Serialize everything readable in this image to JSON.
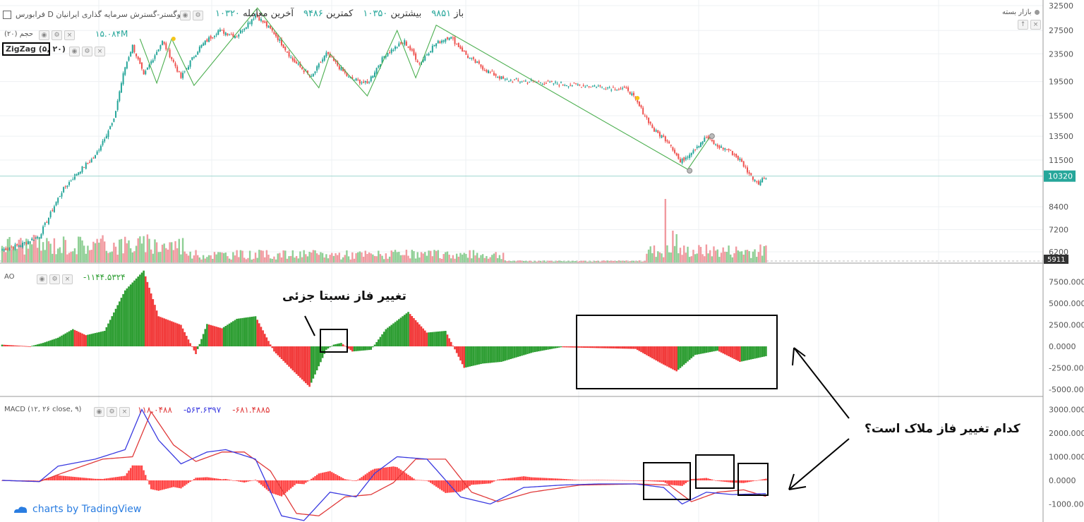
{
  "header": {
    "symbol": "فرابورس D وگستر-گسترش سرمایه گذاری ایرانیان",
    "stats": [
      {
        "label": "باز",
        "value": "۹۸۵۱"
      },
      {
        "label": "بیشترین",
        "value": "۱۰۳۵۰"
      },
      {
        "label": "کمترین",
        "value": "۹۴۸۶"
      },
      {
        "label": "آخرین معامله",
        "value": "۱۰۳۲۰"
      }
    ],
    "market_status": "بازار بسته",
    "volume_label": "حجم (۲۰)",
    "volume_value": "۱۵.۰۸۴M",
    "zigzag_label": "ZigZag (۵, ۲۰)"
  },
  "ao_panel": {
    "label": "AO",
    "value": "-۱۱۴۴.۵۳۲۴"
  },
  "macd_panel": {
    "label": "MACD (۱۲, ۲۶ close, ۹)",
    "hist": "۱۱۸.۰۴۸۸",
    "macd": "-۵۶۳.۶۳۹۷",
    "signal": "-۶۸۱.۴۸۸۵"
  },
  "annotations": {
    "partial_phase": "تغییر فاز نسبتا جزئی",
    "question": "کدام تغییر فاز ملاک است؟"
  },
  "branding": "charts by TradingView",
  "colors": {
    "up": "#26a69a",
    "down": "#ef5350",
    "zigzag": "#4caf50",
    "ao_up": "#2e9e33",
    "ao_down": "#f23b3b",
    "macd": "#3a3ae0",
    "signal": "#e03a3a"
  },
  "chart_data": [
    {
      "type": "candlestick",
      "title": "فرابورس D وگستر-گسترش سرمایه گذاری ایرانیان",
      "price_axis": {
        "ticks": [
          32500,
          27500,
          23500,
          19500,
          15500,
          13500,
          11500,
          8400,
          7200,
          6200
        ],
        "scale": "log",
        "last_price": 10320,
        "marker": 5911
      },
      "close_path": [
        {
          "i": 0,
          "p": 6300
        },
        {
          "i": 10,
          "p": 6500
        },
        {
          "i": 20,
          "p": 6900
        },
        {
          "i": 25,
          "p": 7800
        },
        {
          "i": 32,
          "p": 9300
        },
        {
          "i": 40,
          "p": 10500
        },
        {
          "i": 50,
          "p": 11800
        },
        {
          "i": 60,
          "p": 15000
        },
        {
          "i": 66,
          "p": 21500
        },
        {
          "i": 70,
          "p": 24800
        },
        {
          "i": 76,
          "p": 20200
        },
        {
          "i": 86,
          "p": 25500
        },
        {
          "i": 96,
          "p": 20000
        },
        {
          "i": 106,
          "p": 24500
        },
        {
          "i": 116,
          "p": 27500
        },
        {
          "i": 126,
          "p": 26500
        },
        {
          "i": 136,
          "p": 30500
        },
        {
          "i": 146,
          "p": 27000
        },
        {
          "i": 156,
          "p": 22500
        },
        {
          "i": 166,
          "p": 20000
        },
        {
          "i": 174,
          "p": 23500
        },
        {
          "i": 186,
          "p": 20000
        },
        {
          "i": 196,
          "p": 19200
        },
        {
          "i": 206,
          "p": 23500
        },
        {
          "i": 216,
          "p": 25500
        },
        {
          "i": 224,
          "p": 22000
        },
        {
          "i": 232,
          "p": 25000
        },
        {
          "i": 240,
          "p": 26500
        },
        {
          "i": 250,
          "p": 23000
        },
        {
          "i": 260,
          "p": 21000
        },
        {
          "i": 270,
          "p": 19700
        },
        {
          "i": 285,
          "p": 19500
        },
        {
          "i": 300,
          "p": 19200
        },
        {
          "i": 320,
          "p": 18900
        },
        {
          "i": 336,
          "p": 18500
        },
        {
          "i": 342,
          "p": 16500
        },
        {
          "i": 350,
          "p": 14000
        },
        {
          "i": 358,
          "p": 13000
        },
        {
          "i": 364,
          "p": 11300
        },
        {
          "i": 372,
          "p": 12500
        },
        {
          "i": 378,
          "p": 13400
        },
        {
          "i": 384,
          "p": 12600
        },
        {
          "i": 390,
          "p": 12300
        },
        {
          "i": 396,
          "p": 11500
        },
        {
          "i": 402,
          "p": 10300
        },
        {
          "i": 406,
          "p": 9900
        },
        {
          "i": 410,
          "p": 10320
        }
      ],
      "zigzag": [
        {
          "i": 74,
          "p": 26000
        },
        {
          "i": 83,
          "p": 19300
        },
        {
          "i": 91,
          "p": 26000
        },
        {
          "i": 103,
          "p": 19000
        },
        {
          "i": 137,
          "p": 32000
        },
        {
          "i": 170,
          "p": 18700
        },
        {
          "i": 176,
          "p": 23500
        },
        {
          "i": 196,
          "p": 17700
        },
        {
          "i": 212,
          "p": 27500
        },
        {
          "i": 222,
          "p": 20000
        },
        {
          "i": 233,
          "p": 28500
        },
        {
          "i": 368,
          "p": 10800
        },
        {
          "i": 381,
          "p": 13700
        }
      ]
    },
    {
      "type": "bar",
      "name": "AO",
      "yticks": [
        7500,
        5000,
        2500,
        0,
        -2500,
        -5000
      ]
    },
    {
      "type": "line",
      "name": "MACD (12, 26 close, 9)",
      "yticks": [
        3000,
        2000,
        1000,
        0,
        -1000
      ]
    }
  ]
}
